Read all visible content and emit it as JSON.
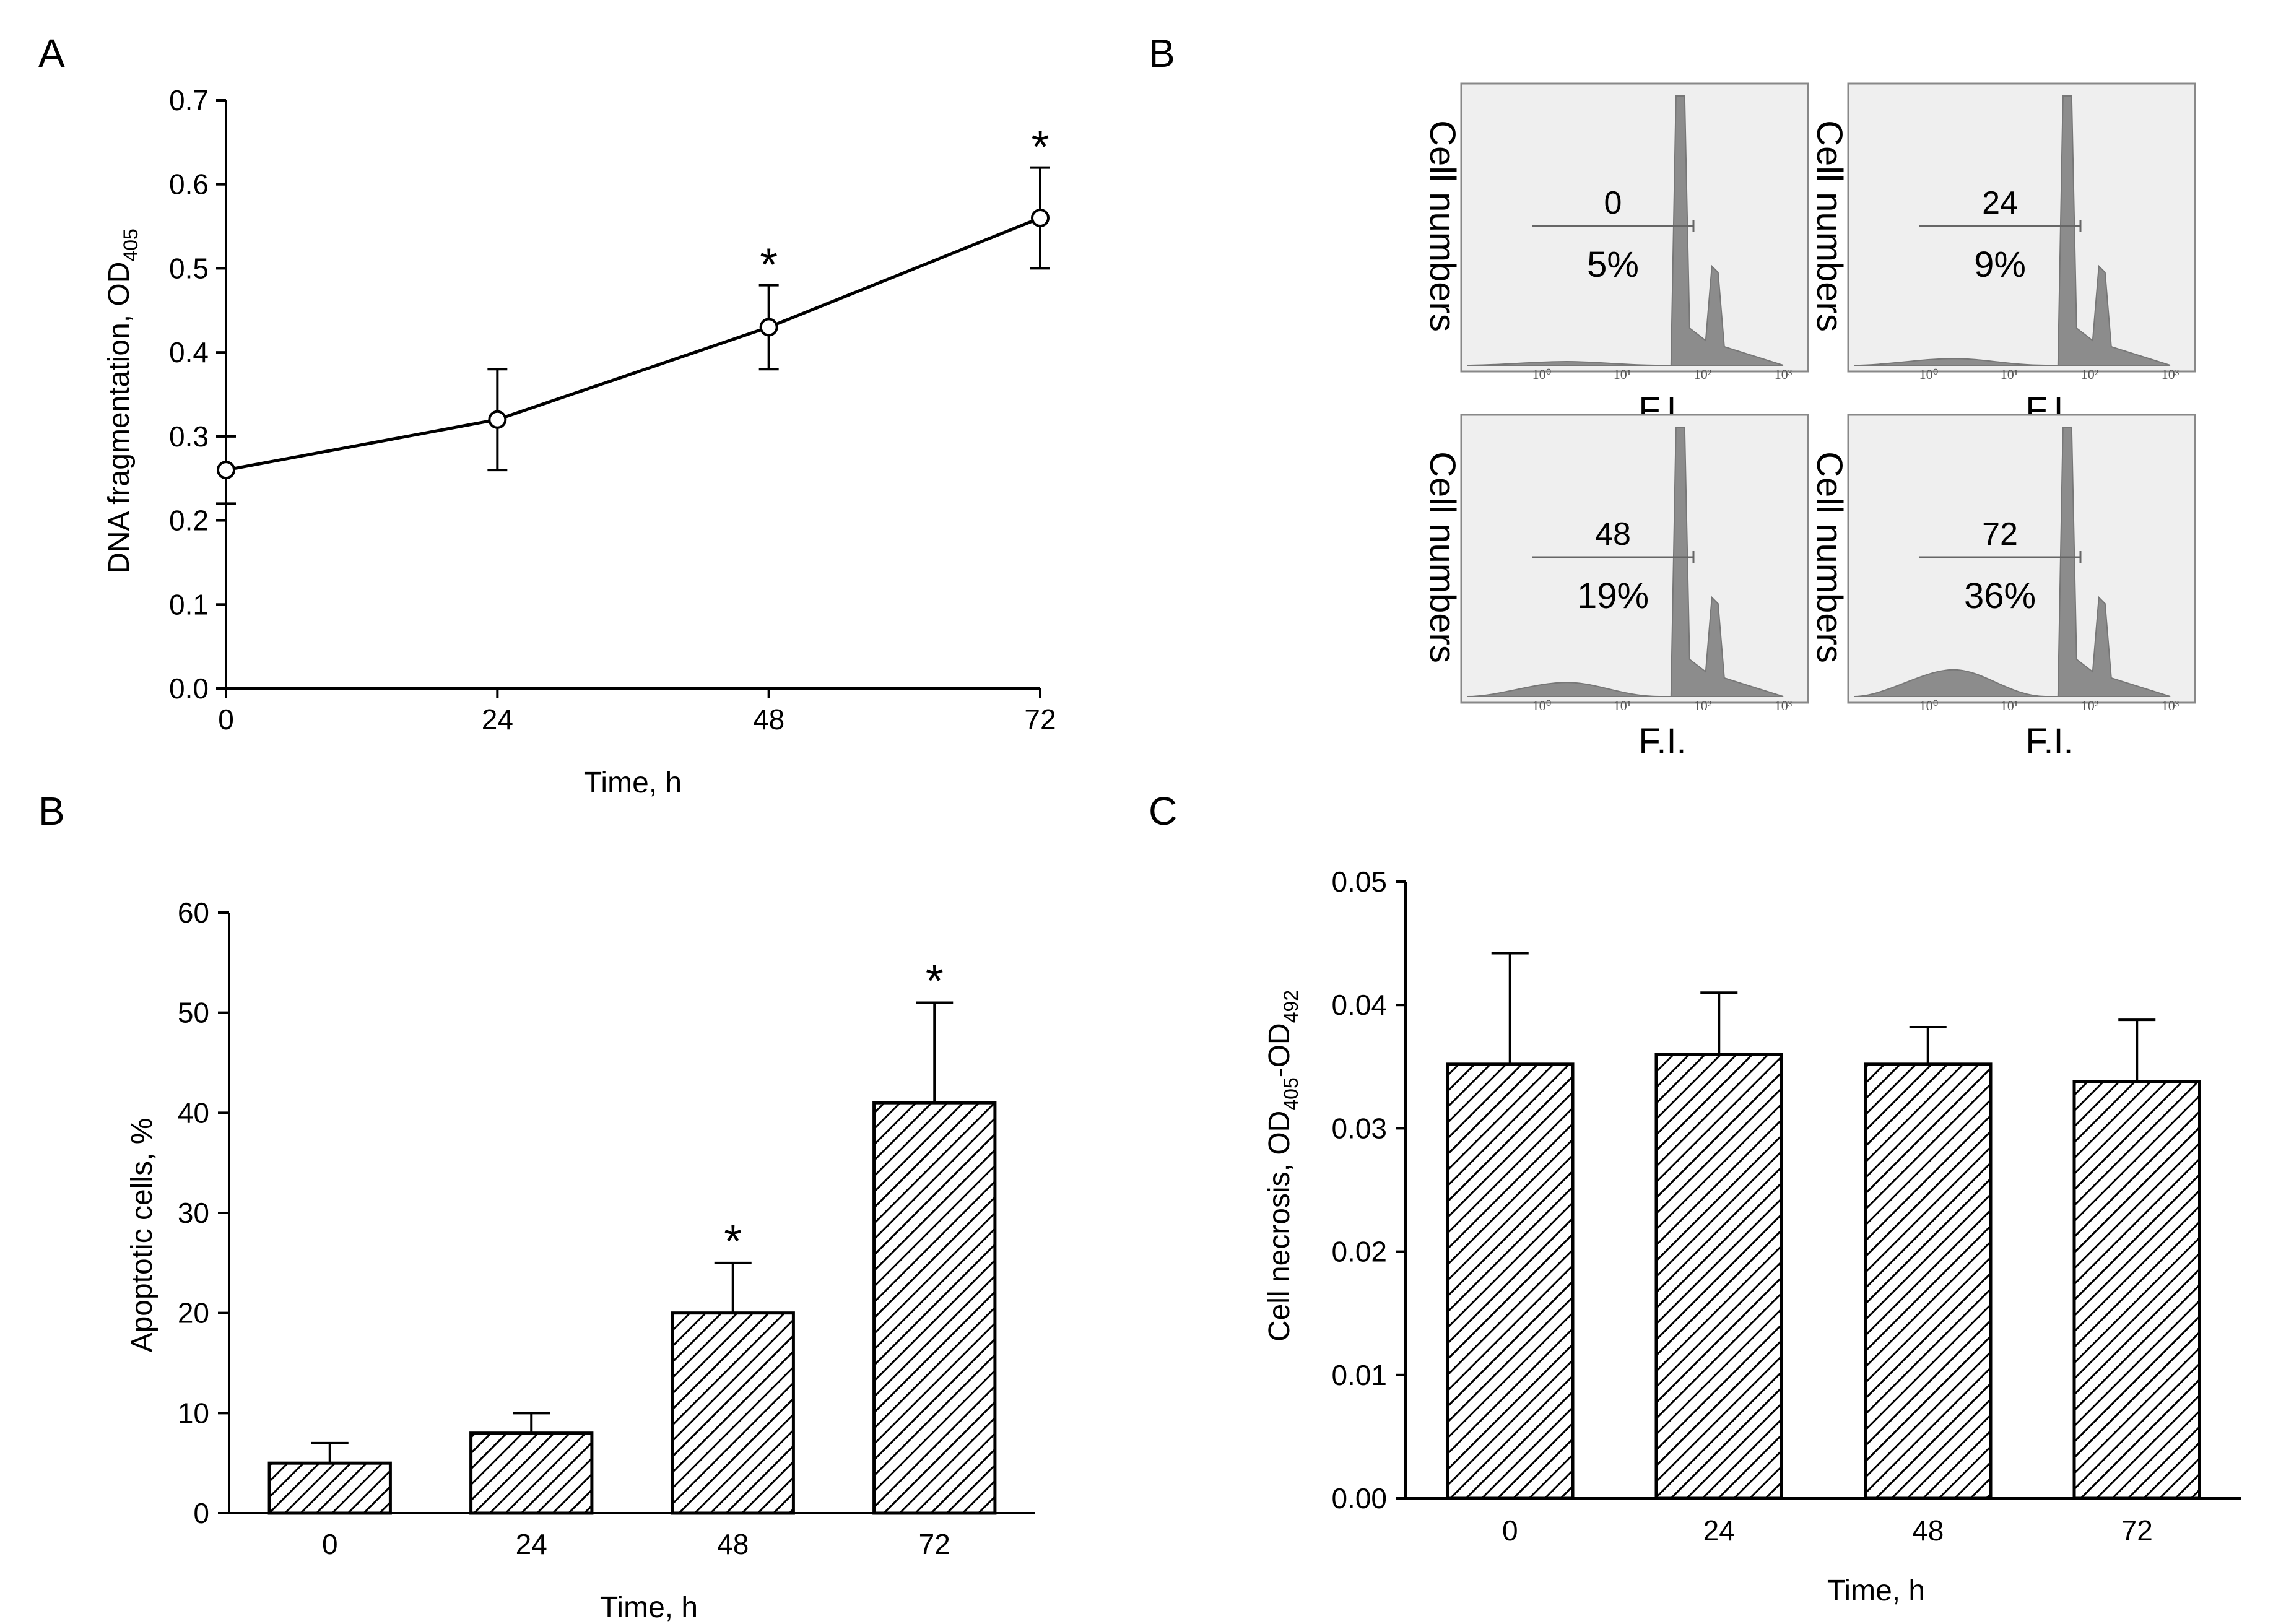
{
  "panel_letters": {
    "a": "A",
    "b_top": "B",
    "b_bottom": "B",
    "c": "C"
  },
  "flow": {
    "panels": [
      {
        "label": "0",
        "percent": "5%",
        "axis_label": "Cell numbers",
        "x_label": "F.I."
      },
      {
        "label": "24",
        "percent": "9%",
        "axis_label": "Cell numbers",
        "x_label": "F.I."
      },
      {
        "label": "48",
        "percent": "19%",
        "axis_label": "Cell numbers",
        "x_label": "F.I."
      },
      {
        "label": "72",
        "percent": "36%",
        "axis_label": "Cell numbers",
        "x_label": "F.I."
      }
    ],
    "tick_labels": [
      "10⁰",
      "10¹",
      "10²",
      "10³"
    ]
  },
  "colors": {
    "ink": "#000000",
    "flow_fill": "#8c8c8c",
    "flow_bg": "#efefef"
  },
  "chart_data": [
    {
      "id": "A",
      "type": "line",
      "x": [
        0,
        24,
        48,
        72
      ],
      "y": [
        0.26,
        0.32,
        0.43,
        0.56
      ],
      "err": [
        0.04,
        0.06,
        0.05,
        0.06
      ],
      "significant": [
        false,
        false,
        true,
        true
      ],
      "significance_mark": "*",
      "xlabel": "Time, h",
      "ylabel_main": "DNA fragmentation, OD",
      "ylabel_sub": "405",
      "xlim": [
        0,
        72
      ],
      "ylim": [
        0,
        0.7
      ],
      "xticks": [
        "0",
        "24",
        "48",
        "72"
      ],
      "yticks": [
        "0.0",
        "0.1",
        "0.2",
        "0.3",
        "0.4",
        "0.5",
        "0.6",
        "0.7"
      ]
    },
    {
      "id": "B",
      "type": "bar",
      "categories": [
        "0",
        "24",
        "48",
        "72"
      ],
      "values": [
        5,
        8,
        20,
        41
      ],
      "err": [
        2,
        2,
        5,
        10
      ],
      "significant": [
        false,
        false,
        true,
        true
      ],
      "significance_mark": "*",
      "xlabel": "Time, h",
      "ylabel": "Apoptotic cells, %",
      "ylim": [
        0,
        60
      ],
      "yticks": [
        "0",
        "10",
        "20",
        "30",
        "40",
        "50",
        "60"
      ]
    },
    {
      "id": "C",
      "type": "bar",
      "categories": [
        "0",
        "24",
        "48",
        "72"
      ],
      "values": [
        0.0352,
        0.036,
        0.0352,
        0.0338
      ],
      "err": [
        0.009,
        0.005,
        0.003,
        0.005
      ],
      "xlabel": "Time, h",
      "ylabel_main": "Cell necrosis, OD",
      "ylabel_sub1": "405",
      "ylabel_mid": "-OD",
      "ylabel_sub2": "492",
      "ylim": [
        0,
        0.05
      ],
      "yticks": [
        "0.00",
        "0.01",
        "0.02",
        "0.03",
        "0.04",
        "0.05"
      ]
    }
  ]
}
